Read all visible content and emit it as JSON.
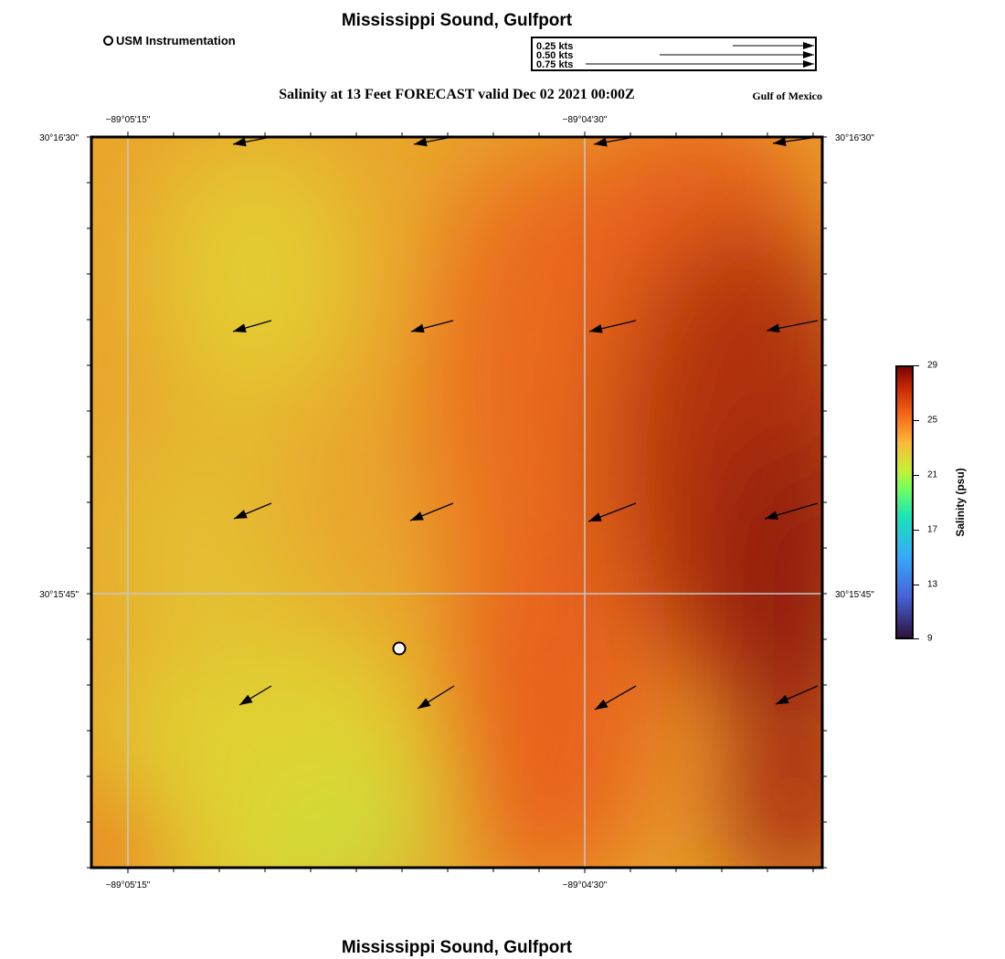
{
  "header": {
    "title": "Mississippi Sound, Gulfport",
    "subtitle": "Salinity at 13 Feet FORECAST valid Dec 02 2021 00:00Z",
    "region": "Gulf of Mexico",
    "legend_label": "USM Instrumentation"
  },
  "footer": {
    "title": "Mississippi Sound, Gulfport"
  },
  "vector_key": {
    "labels": [
      "0.25 kts",
      "0.50 kts",
      "0.75 kts"
    ],
    "speeds_kts": [
      0.25,
      0.5,
      0.75
    ]
  },
  "map": {
    "lon_labels": [
      "−89°05'15\"",
      "−89°04'30\""
    ],
    "lat_labels": [
      "30°16'30\"",
      "30°15'45\""
    ],
    "field": "salinity",
    "station": "USM Instrumentation"
  },
  "colorbar": {
    "title": "Salinity (psu)",
    "ticks": [
      "29",
      "25",
      "21",
      "17",
      "13",
      "9"
    ],
    "min": 9,
    "max": 29
  },
  "colors": {
    "low_salinity": "#d9d62e",
    "mid_salinity": "#e8621a",
    "high_salinity": "#8e1a08",
    "grid": "#c8c8c8"
  }
}
